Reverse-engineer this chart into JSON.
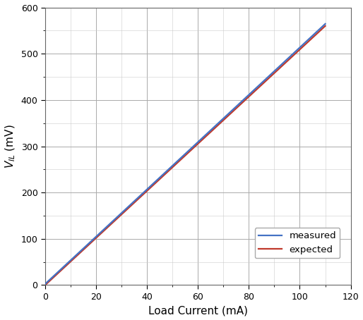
{
  "xlabel": "Load Current (mA)",
  "ylabel_display": "$V_{IL}$ (mV)",
  "xlim": [
    0,
    120
  ],
  "ylim": [
    0,
    600
  ],
  "xticks": [
    0,
    20,
    40,
    60,
    80,
    100,
    120
  ],
  "yticks": [
    0,
    100,
    200,
    300,
    400,
    500,
    600
  ],
  "measured_x": [
    0,
    10,
    20,
    30,
    40,
    50,
    60,
    70,
    80,
    90,
    100,
    110
  ],
  "measured_y": [
    3,
    50,
    99,
    149,
    199,
    249,
    299,
    349,
    399,
    449,
    499,
    562
  ],
  "expected_x": [
    0,
    10,
    20,
    30,
    40,
    50,
    60,
    70,
    80,
    90,
    100,
    110
  ],
  "expected_y": [
    0,
    46,
    92,
    138,
    185,
    231,
    277,
    323,
    369,
    415,
    461,
    560
  ],
  "measured_color": "#4472C4",
  "expected_color": "#C0392B",
  "line_width": 1.6,
  "legend_loc": "lower right",
  "background_color": "#ffffff",
  "grid_major_color": "#aaaaaa",
  "grid_minor_color": "#cccccc",
  "figsize": [
    5.14,
    4.54
  ],
  "dpi": 100
}
